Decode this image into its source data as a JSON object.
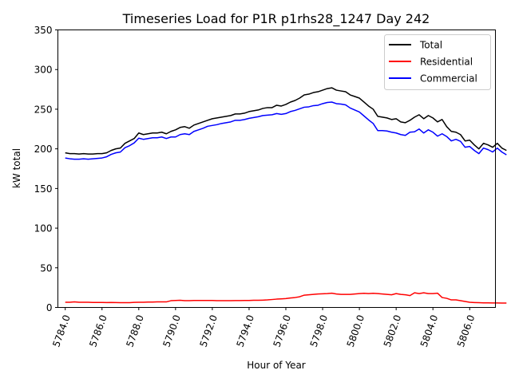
{
  "chart_data": {
    "type": "line",
    "title": "Timeseries Load for P1R p1rhs28_1247  Day 242",
    "xlabel": "Hour of Year",
    "ylabel": "kW total",
    "xlim": [
      5783.6,
      5807.4
    ],
    "ylim": [
      0,
      350
    ],
    "xticks": [
      5784,
      5786,
      5788,
      5790,
      5792,
      5794,
      5796,
      5798,
      5800,
      5802,
      5804,
      5806
    ],
    "xtick_labels": [
      "5784.0",
      "5786.0",
      "5788.0",
      "5790.0",
      "5792.0",
      "5794.0",
      "5796.0",
      "5798.0",
      "5800.0",
      "5802.0",
      "5804.0",
      "5806.0"
    ],
    "yticks": [
      0,
      50,
      100,
      150,
      200,
      250,
      300,
      350
    ],
    "ytick_labels": [
      "0",
      "50",
      "100",
      "150",
      "200",
      "250",
      "300",
      "350"
    ],
    "x_start": 5784,
    "x_step": 0.25,
    "legend_position": "upper-right",
    "grid": false,
    "series": [
      {
        "name": "Total",
        "color": "#000000",
        "values": [
          195,
          194,
          194,
          193.5,
          194,
          193.5,
          193.5,
          194,
          194,
          195,
          198,
          200,
          201,
          207,
          210,
          213,
          220,
          218,
          219,
          220,
          220,
          221,
          219,
          222,
          224,
          227,
          228,
          226,
          230,
          232,
          234,
          236,
          238,
          239,
          240,
          241,
          242,
          244,
          244,
          245,
          247,
          248,
          249,
          251,
          252,
          252,
          255,
          254,
          256,
          259,
          261,
          264,
          268,
          269,
          271,
          272,
          274,
          276,
          277,
          274,
          273,
          272,
          268,
          266,
          264,
          259,
          254,
          250,
          241,
          240,
          239,
          237,
          238,
          234,
          233,
          236,
          240,
          243,
          238,
          242,
          239,
          234,
          237,
          228,
          222,
          221,
          218,
          210,
          211,
          205,
          200,
          207,
          205,
          202,
          207,
          201,
          198
        ]
      },
      {
        "name": "Residential",
        "color": "#ff0000",
        "values": [
          6.5,
          6.5,
          7,
          6.5,
          6.5,
          6.5,
          6.3,
          6.3,
          6.3,
          6.2,
          6.3,
          6.2,
          6,
          6,
          6,
          6.4,
          6.5,
          6.5,
          6.8,
          6.8,
          7,
          7,
          7,
          8.5,
          8.8,
          9,
          8.5,
          8.5,
          8.8,
          8.8,
          8.8,
          8.8,
          8.8,
          8.5,
          8.5,
          8.5,
          8.5,
          8.7,
          8.7,
          8.8,
          8.8,
          9,
          9,
          9.2,
          9.5,
          10,
          10.5,
          10.8,
          11.2,
          12,
          12.5,
          13.5,
          15.5,
          16,
          16.5,
          17,
          17.2,
          17.5,
          18,
          17,
          16.5,
          16.5,
          16.5,
          17,
          17.5,
          17.8,
          17.5,
          17.8,
          17.5,
          17,
          16.5,
          16,
          17.5,
          16.5,
          16,
          15,
          18.5,
          17.5,
          18.5,
          17.5,
          17.5,
          18,
          12.5,
          11.5,
          9.5,
          9.5,
          8.5,
          7.5,
          6.5,
          6.2,
          6,
          5.8,
          5.8,
          5.6,
          5.6,
          5.5,
          5.5
        ]
      },
      {
        "name": "Commercial",
        "color": "#0000ff",
        "values": [
          188.5,
          187.5,
          187,
          187,
          187.5,
          187,
          187.5,
          188,
          188.5,
          190,
          193,
          195,
          196,
          201.5,
          204,
          207.5,
          213.5,
          212,
          213,
          214,
          214,
          215,
          213,
          215,
          215,
          218,
          219,
          218,
          222,
          224,
          226,
          228.5,
          229.5,
          230.5,
          232,
          233,
          234,
          236,
          236,
          237,
          238.5,
          239.5,
          240.5,
          242,
          242.5,
          243,
          244.5,
          243.5,
          244.5,
          247,
          248.5,
          250.5,
          252.5,
          253,
          254.5,
          255,
          257,
          258.5,
          259,
          257,
          256.5,
          255.5,
          251.5,
          249,
          246.5,
          241.5,
          236.5,
          232,
          223,
          223,
          222.5,
          221,
          220,
          218,
          217,
          221,
          221.5,
          225,
          220,
          224,
          221,
          216,
          219,
          215.5,
          210,
          212,
          209.5,
          202,
          203,
          198,
          194,
          201,
          199,
          196,
          201,
          196,
          192.5
        ]
      }
    ]
  }
}
